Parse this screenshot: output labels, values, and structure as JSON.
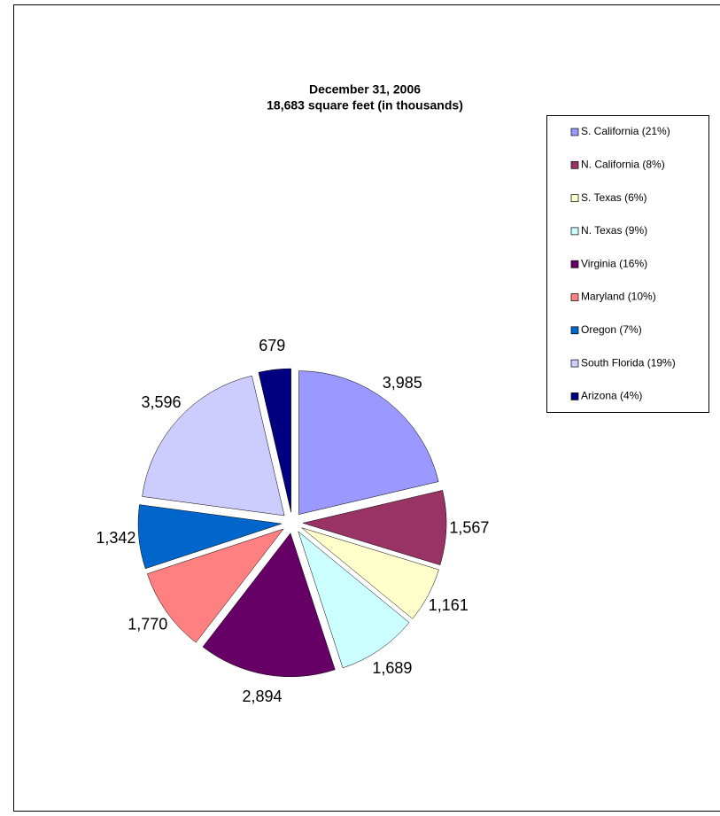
{
  "chart_data": {
    "type": "pie",
    "title": "December 31, 2006",
    "subtitle": "18,683 square feet (in thousands)",
    "categories": [
      "S. California (21%)",
      "N. California (8%)",
      "S. Texas (6%)",
      "N. Texas (9%)",
      "Virginia (16%)",
      "Maryland (10%)",
      "Oregon (7%)",
      "South Florida (19%)",
      "Arizona (4%)"
    ],
    "values": [
      3985,
      1567,
      1161,
      1689,
      2894,
      1770,
      1342,
      3596,
      679
    ],
    "value_labels": [
      "3,985",
      "1,567",
      "1,161",
      "1,689",
      "2,894",
      "1,770",
      "1,342",
      "3,596",
      "679"
    ],
    "colors": [
      "#9999ff",
      "#993366",
      "#ffffcc",
      "#ccffff",
      "#660066",
      "#ff8080",
      "#0066cc",
      "#ccccff",
      "#000080"
    ],
    "legend": "right"
  }
}
